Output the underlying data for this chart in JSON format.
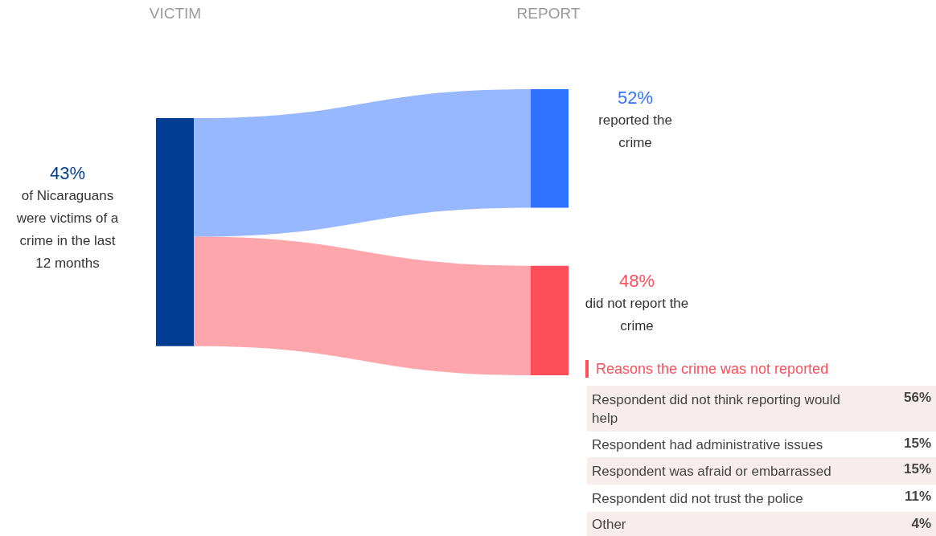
{
  "chart_data": [
    {
      "type": "other",
      "annotations": [
        "VICTIM",
        "REPORT"
      ],
      "categories": [
        "of Nicaraguans were victims of a crime in the last 12 months",
        "reported the crime",
        "did not report the crime"
      ],
      "values": [
        43,
        52,
        48
      ],
      "value_labels": [
        "43%",
        "52%",
        "48%"
      ],
      "colors": [
        "#003c8f",
        "#2f72ff",
        "#fe4e5a"
      ]
    },
    {
      "type": "other",
      "title": "Reasons the crime was not reported",
      "categories": [
        "Respondent did not think reporting would help",
        "Respondent had administrative issues",
        "Respondent was afraid or embarrassed",
        "Respondent did not trust the police",
        "Other"
      ],
      "values": [
        56,
        15,
        15,
        11,
        4
      ],
      "value_labels": [
        "56%",
        "15%",
        "15%",
        "11%",
        "4%"
      ]
    }
  ]
}
